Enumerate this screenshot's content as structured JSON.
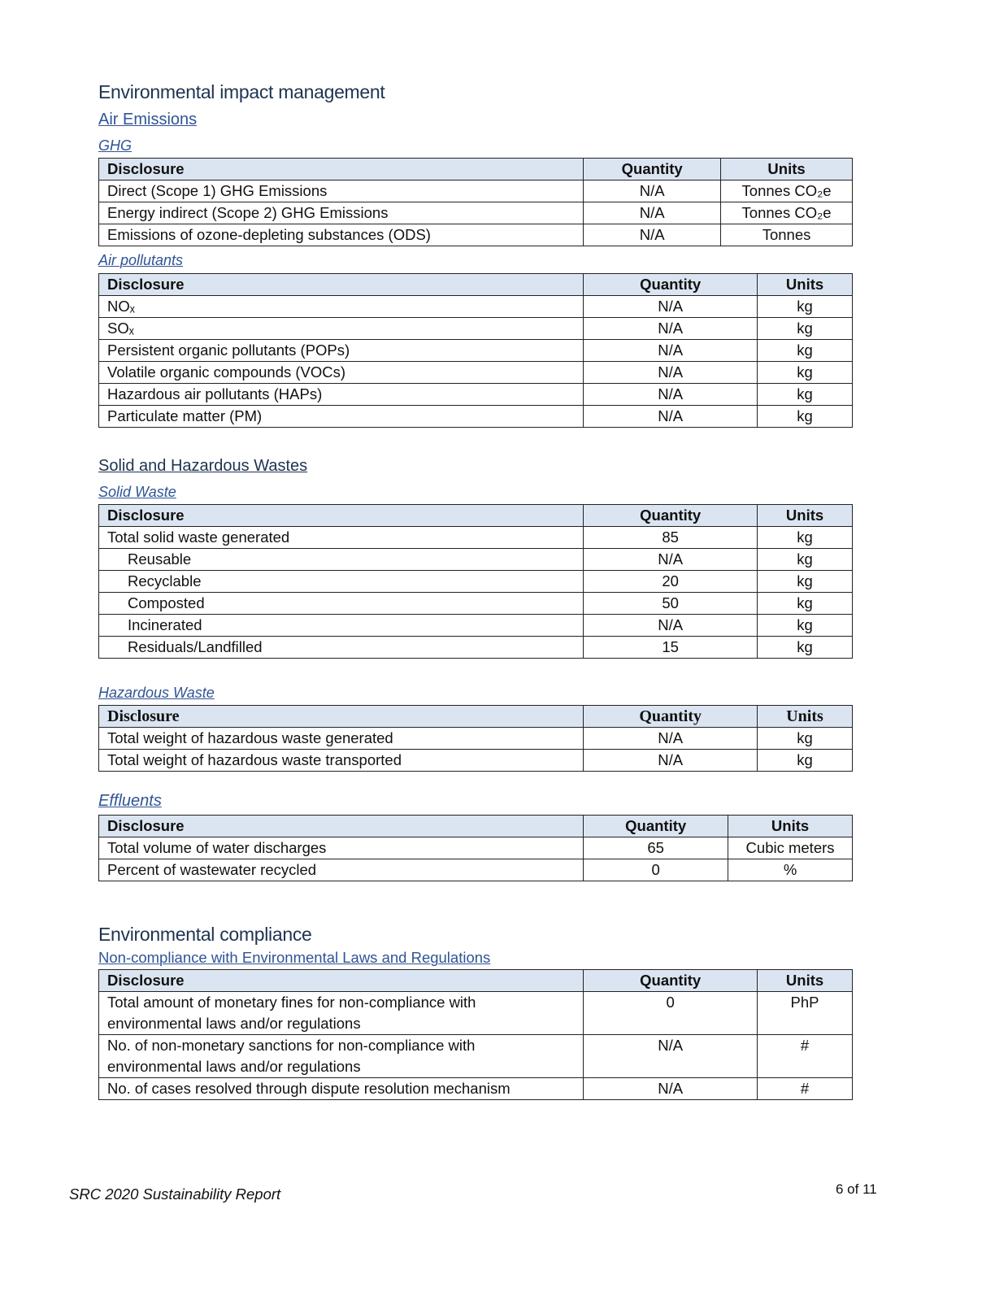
{
  "page_title": "Environmental impact management",
  "air_emissions_heading": "Air Emissions",
  "solid_haz_heading": "Solid and Hazardous Wastes",
  "compliance_title": "Environmental compliance",
  "header_bg": "#dbe5f1",
  "tables": {
    "ghg": {
      "caption": "GHG",
      "headers": [
        "Disclosure",
        "Quantity",
        "Units"
      ],
      "rows": [
        {
          "disclosure": "Direct (Scope 1) GHG Emissions",
          "quantity": "N/A",
          "units": "Tonnes CO₂e"
        },
        {
          "disclosure": "Energy indirect (Scope 2) GHG Emissions",
          "quantity": "N/A",
          "units": "Tonnes CO₂e"
        },
        {
          "disclosure": "Emissions of ozone-depleting substances (ODS)",
          "quantity": "N/A",
          "units": "Tonnes"
        }
      ]
    },
    "air_pollutants": {
      "caption": "Air pollutants",
      "headers": [
        "Disclosure",
        "Quantity",
        "Units"
      ],
      "rows": [
        {
          "disclosure": "NOₓ",
          "quantity": "N/A",
          "units": "kg"
        },
        {
          "disclosure": "SOₓ",
          "quantity": "N/A",
          "units": "kg"
        },
        {
          "disclosure": "Persistent organic pollutants (POPs)",
          "quantity": "N/A",
          "units": "kg"
        },
        {
          "disclosure": "Volatile organic compounds (VOCs)",
          "quantity": "N/A",
          "units": "kg"
        },
        {
          "disclosure": "Hazardous air pollutants (HAPs)",
          "quantity": "N/A",
          "units": "kg"
        },
        {
          "disclosure": "Particulate matter (PM)",
          "quantity": "N/A",
          "units": "kg"
        }
      ]
    },
    "solid_waste": {
      "caption": "Solid Waste",
      "headers": [
        "Disclosure",
        "Quantity",
        "Units"
      ],
      "rows": [
        {
          "disclosure": "Total solid waste generated",
          "quantity": "85",
          "units": "kg"
        },
        {
          "disclosure": "Reusable",
          "quantity": "N/A",
          "units": "kg",
          "sub": true
        },
        {
          "disclosure": "Recyclable",
          "quantity": "20",
          "units": "kg",
          "sub": true
        },
        {
          "disclosure": "Composted",
          "quantity": "50",
          "units": "kg",
          "sub": true
        },
        {
          "disclosure": "Incinerated",
          "quantity": "N/A",
          "units": "kg",
          "sub": true
        },
        {
          "disclosure": "Residuals/Landfilled",
          "quantity": "15",
          "units": "kg",
          "sub": true
        }
      ]
    },
    "hazardous_waste": {
      "caption": "Hazardous Waste",
      "headers": [
        "Disclosure",
        "Quantity",
        "Units"
      ],
      "rows": [
        {
          "disclosure": "Total weight of hazardous waste generated",
          "quantity": "N/A",
          "units": "kg"
        },
        {
          "disclosure": "Total weight of hazardous waste transported",
          "quantity": "N/A",
          "units": "kg"
        }
      ]
    },
    "effluents": {
      "caption": "Effluents",
      "headers": [
        "Disclosure",
        "Quantity",
        "Units"
      ],
      "rows": [
        {
          "disclosure": "Total volume of water discharges",
          "quantity": "65",
          "units": "Cubic meters"
        },
        {
          "disclosure": "Percent of wastewater recycled",
          "quantity": "0",
          "units": "%"
        }
      ]
    },
    "compliance": {
      "caption": "Non-compliance with Environmental Laws and Regulations",
      "headers": [
        "Disclosure",
        "Quantity",
        "Units"
      ],
      "rows": [
        {
          "disclosure": "Total amount of monetary fines for non-compliance with\nenvironmental laws and/or regulations",
          "quantity": "0",
          "units": "PhP"
        },
        {
          "disclosure": "No. of non-monetary sanctions for non-compliance with\nenvironmental laws and/or regulations",
          "quantity": "N/A",
          "units": "#"
        },
        {
          "disclosure": "No. of cases resolved through dispute resolution mechanism",
          "quantity": "N/A",
          "units": "#"
        }
      ]
    }
  },
  "footer": {
    "report_name": "SRC 2020 Sustainability Report",
    "page_number": "6 of 11"
  }
}
